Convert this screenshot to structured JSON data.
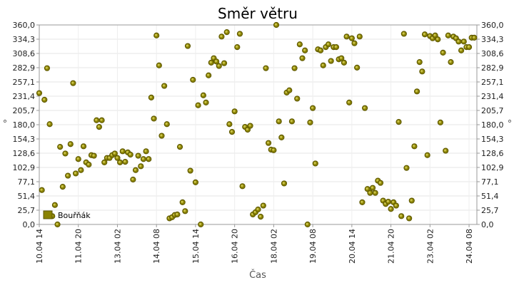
{
  "chart_data": {
    "type": "scatter",
    "title": "Směr větru",
    "xlabel": "Čas",
    "ylabel": "°",
    "ylim": [
      0,
      360
    ],
    "yticks": [
      "0,0",
      "25,7",
      "51,4",
      "77,1",
      "102,9",
      "128,6",
      "154,3",
      "180,0",
      "205,7",
      "231,4",
      "257,1",
      "282,9",
      "308,6",
      "334,3",
      "360,0"
    ],
    "xticks": [
      "10.04 14",
      "11.04 20",
      "13.04 02",
      "14.04 08",
      "15.04 14",
      "16.04 20",
      "18.04 02",
      "19.04 08",
      "20.04 14",
      "21.04 20",
      "23.04 02",
      "24.04 08"
    ],
    "x_start": "10.04 14",
    "x_end": "24.04 14",
    "grid": true,
    "legend_position": "bottom-left",
    "colors": {
      "series": "#8a8200",
      "series_edge": "#5c5600",
      "series_highlight": "#c9c24a"
    },
    "series": [
      {
        "name": "Bouřňák",
        "points": [
          [
            "10.04 14",
            237
          ],
          [
            "10.04 16",
            62
          ],
          [
            "10.04 18",
            225
          ],
          [
            "10.04 20",
            282
          ],
          [
            "10.04 22",
            181
          ],
          [
            "11.04 00",
            15
          ],
          [
            "11.04 02",
            35
          ],
          [
            "11.04 04",
            0
          ],
          [
            "11.04 06",
            140
          ],
          [
            "11.04 08",
            68
          ],
          [
            "11.04 10",
            128
          ],
          [
            "11.04 12",
            88
          ],
          [
            "11.04 14",
            145
          ],
          [
            "11.04 16",
            255
          ],
          [
            "11.04 18",
            92
          ],
          [
            "11.04 20",
            118
          ],
          [
            "11.04 22",
            98
          ],
          [
            "12.04 00",
            141
          ],
          [
            "12.04 02",
            112
          ],
          [
            "12.04 04",
            108
          ],
          [
            "12.04 06",
            125
          ],
          [
            "12.04 08",
            124
          ],
          [
            "12.04 10",
            188
          ],
          [
            "12.04 12",
            176
          ],
          [
            "12.04 14",
            188
          ],
          [
            "12.04 16",
            112
          ],
          [
            "12.04 18",
            120
          ],
          [
            "12.04 20",
            120
          ],
          [
            "12.04 22",
            125
          ],
          [
            "13.04 00",
            128
          ],
          [
            "13.04 02",
            120
          ],
          [
            "13.04 04",
            112
          ],
          [
            "13.04 06",
            132
          ],
          [
            "13.04 08",
            113
          ],
          [
            "13.04 10",
            130
          ],
          [
            "13.04 12",
            126
          ],
          [
            "13.04 14",
            81
          ],
          [
            "13.04 16",
            98
          ],
          [
            "13.04 18",
            124
          ],
          [
            "13.04 20",
            105
          ],
          [
            "13.04 22",
            118
          ],
          [
            "14.04 00",
            132
          ],
          [
            "14.04 02",
            118
          ],
          [
            "14.04 04",
            229
          ],
          [
            "14.04 06",
            191
          ],
          [
            "14.04 08",
            341
          ],
          [
            "14.04 10",
            287
          ],
          [
            "14.04 12",
            160
          ],
          [
            "14.04 14",
            250
          ],
          [
            "14.04 16",
            181
          ],
          [
            "14.04 18",
            11
          ],
          [
            "14.04 20",
            13
          ],
          [
            "14.04 22",
            17
          ],
          [
            "15.04 00",
            18
          ],
          [
            "15.04 02",
            140
          ],
          [
            "15.04 04",
            40
          ],
          [
            "15.04 06",
            24
          ],
          [
            "15.04 08",
            322
          ],
          [
            "15.04 10",
            97
          ],
          [
            "15.04 12",
            261
          ],
          [
            "15.04 14",
            76
          ],
          [
            "15.04 16",
            215
          ],
          [
            "15.04 18",
            0
          ],
          [
            "15.04 20",
            233
          ],
          [
            "15.04 22",
            220
          ],
          [
            "16.04 00",
            269
          ],
          [
            "16.04 02",
            292
          ],
          [
            "16.04 04",
            300
          ],
          [
            "16.04 06",
            294
          ],
          [
            "16.04 08",
            286
          ],
          [
            "16.04 10",
            339
          ],
          [
            "16.04 12",
            291
          ],
          [
            "16.04 14",
            347
          ],
          [
            "16.04 16",
            181
          ],
          [
            "16.04 18",
            167
          ],
          [
            "16.04 20",
            204
          ],
          [
            "16.04 22",
            320
          ],
          [
            "17.04 00",
            344
          ],
          [
            "17.04 02",
            69
          ],
          [
            "17.04 04",
            176
          ],
          [
            "17.04 06",
            171
          ],
          [
            "17.04 08",
            178
          ],
          [
            "17.04 10",
            18
          ],
          [
            "17.04 12",
            22
          ],
          [
            "17.04 14",
            27
          ],
          [
            "17.04 16",
            14
          ],
          [
            "17.04 18",
            34
          ],
          [
            "17.04 20",
            282
          ],
          [
            "17.04 22",
            147
          ],
          [
            "18.04 00",
            135
          ],
          [
            "18.04 02",
            134
          ],
          [
            "18.04 04",
            360
          ],
          [
            "18.04 06",
            186
          ],
          [
            "18.04 08",
            157
          ],
          [
            "18.04 10",
            74
          ],
          [
            "18.04 12",
            238
          ],
          [
            "18.04 14",
            242
          ],
          [
            "18.04 16",
            186
          ],
          [
            "18.04 18",
            282
          ],
          [
            "18.04 20",
            227
          ],
          [
            "18.04 22",
            325
          ],
          [
            "19.04 00",
            300
          ],
          [
            "19.04 02",
            314
          ],
          [
            "19.04 04",
            0
          ],
          [
            "19.04 06",
            184
          ],
          [
            "19.04 08",
            210
          ],
          [
            "19.04 10",
            110
          ],
          [
            "19.04 12",
            316
          ],
          [
            "19.04 14",
            314
          ],
          [
            "19.04 16",
            287
          ],
          [
            "19.04 18",
            320
          ],
          [
            "19.04 20",
            325
          ],
          [
            "19.04 22",
            295
          ],
          [
            "20.04 00",
            320
          ],
          [
            "20.04 02",
            320
          ],
          [
            "20.04 04",
            298
          ],
          [
            "20.04 06",
            300
          ],
          [
            "20.04 08",
            292
          ],
          [
            "20.04 10",
            339
          ],
          [
            "20.04 12",
            220
          ],
          [
            "20.04 14",
            336
          ],
          [
            "20.04 16",
            327
          ],
          [
            "20.04 18",
            283
          ],
          [
            "20.04 20",
            339
          ],
          [
            "20.04 22",
            40
          ],
          [
            "21.04 00",
            210
          ],
          [
            "21.04 02",
            64
          ],
          [
            "21.04 04",
            57
          ],
          [
            "21.04 06",
            66
          ],
          [
            "21.04 08",
            57
          ],
          [
            "21.04 10",
            79
          ],
          [
            "21.04 12",
            75
          ],
          [
            "21.04 14",
            43
          ],
          [
            "21.04 16",
            37
          ],
          [
            "21.04 18",
            41
          ],
          [
            "21.04 20",
            28
          ],
          [
            "21.04 22",
            40
          ],
          [
            "22.04 00",
            34
          ],
          [
            "22.04 02",
            185
          ],
          [
            "22.04 04",
            15
          ],
          [
            "22.04 06",
            344
          ],
          [
            "22.04 08",
            102
          ],
          [
            "22.04 10",
            11
          ],
          [
            "22.04 12",
            43
          ],
          [
            "22.04 14",
            141
          ],
          [
            "22.04 16",
            240
          ],
          [
            "22.04 18",
            293
          ],
          [
            "22.04 20",
            276
          ],
          [
            "22.04 22",
            343
          ],
          [
            "23.04 00",
            125
          ],
          [
            "23.04 02",
            340
          ],
          [
            "23.04 04",
            336
          ],
          [
            "23.04 06",
            341
          ],
          [
            "23.04 08",
            334
          ],
          [
            "23.04 10",
            184
          ],
          [
            "23.04 12",
            310
          ],
          [
            "23.04 14",
            133
          ],
          [
            "23.04 16",
            341
          ],
          [
            "23.04 18",
            293
          ],
          [
            "23.04 20",
            339
          ],
          [
            "23.04 22",
            336
          ],
          [
            "24.04 00",
            330
          ],
          [
            "24.04 02",
            314
          ],
          [
            "24.04 04",
            330
          ],
          [
            "24.04 06",
            320
          ],
          [
            "24.04 08",
            320
          ],
          [
            "24.04 10",
            337
          ],
          [
            "24.04 12",
            337
          ]
        ]
      }
    ]
  }
}
